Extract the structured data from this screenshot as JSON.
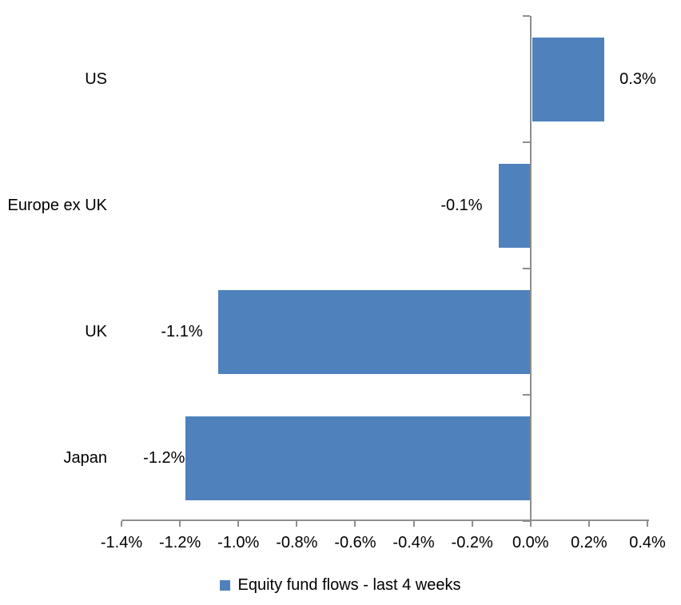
{
  "chart_data": {
    "type": "bar",
    "orientation": "horizontal",
    "title": "",
    "categories": [
      "US",
      "Europe ex UK",
      "UK",
      "Japan"
    ],
    "series": [
      {
        "name": "Equity fund flows - last 4 weeks",
        "values": [
          0.25,
          -0.11,
          -1.07,
          -1.18
        ],
        "data_labels": [
          "0.3%",
          "-0.1%",
          "-1.1%",
          "-1.2%"
        ]
      }
    ],
    "x_axis": {
      "unit": "%",
      "min": -1.4,
      "max": 0.4,
      "step": 0.2,
      "tick_labels": [
        "-1.4%",
        "-1.2%",
        "-1.0%",
        "-0.8%",
        "-0.6%",
        "-0.4%",
        "-0.2%",
        "0.0%",
        "0.2%",
        "0.4%"
      ]
    },
    "grid": false,
    "legend": {
      "position": "bottom",
      "label": "Equity fund flows - last 4 weeks"
    },
    "colors": {
      "bar": "#4F81BD",
      "axis": "#8E8E8E",
      "text": "#000000"
    },
    "label_gaps": [
      19,
      20,
      19,
      1
    ]
  }
}
